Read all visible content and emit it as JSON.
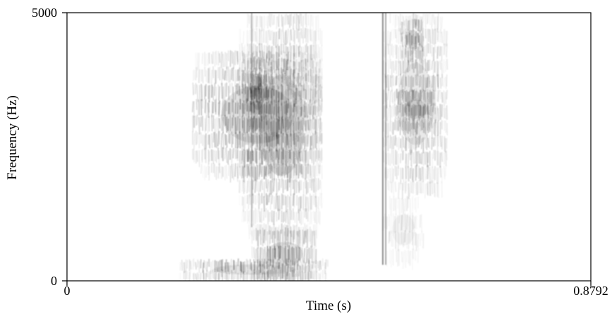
{
  "chart_data": {
    "type": "heatmap",
    "title": "",
    "xlabel": "Time (s)",
    "ylabel": "Frequency (Hz)",
    "xlim": [
      0,
      0.8792
    ],
    "ylim": [
      0,
      5000
    ],
    "x_ticks": [
      {
        "value": 0,
        "label": "0"
      },
      {
        "value": 0.8792,
        "label": "0.8792"
      }
    ],
    "y_ticks": [
      {
        "value": 0,
        "label": "0"
      },
      {
        "value": 5000,
        "label": "5000"
      }
    ],
    "colormap": "grayscale (white = low energy, black = high energy)",
    "energy_regions": [
      {
        "t": [
          0.19,
          0.44
        ],
        "f": [
          0,
          420
        ],
        "intensity": 0.75
      },
      {
        "t": [
          0.31,
          0.42
        ],
        "f": [
          0,
          1000
        ],
        "intensity": 0.85
      },
      {
        "t": [
          0.21,
          0.43
        ],
        "f": [
          1900,
          4300
        ],
        "intensity": 0.8
      },
      {
        "t": [
          0.29,
          0.43
        ],
        "f": [
          800,
          5000
        ],
        "intensity": 0.7
      },
      {
        "t": [
          0.3,
          0.34
        ],
        "f": [
          2800,
          4200
        ],
        "intensity": 1.0
      },
      {
        "t": [
          0.53,
          0.64
        ],
        "f": [
          1600,
          5000
        ],
        "intensity": 0.6
      },
      {
        "t": [
          0.56,
          0.6
        ],
        "f": [
          4100,
          4900
        ],
        "intensity": 0.9
      },
      {
        "t": [
          0.55,
          0.62
        ],
        "f": [
          2800,
          3600
        ],
        "intensity": 0.8
      },
      {
        "t": [
          0.53,
          0.6
        ],
        "f": [
          300,
          1600
        ],
        "intensity": 0.25
      }
    ],
    "vertical_striations": [
      {
        "t": 0.53,
        "f": [
          300,
          5000
        ],
        "intensity": 0.85
      },
      {
        "t": 0.535,
        "f": [
          300,
          5000
        ],
        "intensity": 0.6
      },
      {
        "t": 0.31,
        "f": [
          1000,
          5000
        ],
        "intensity": 0.45
      }
    ]
  }
}
